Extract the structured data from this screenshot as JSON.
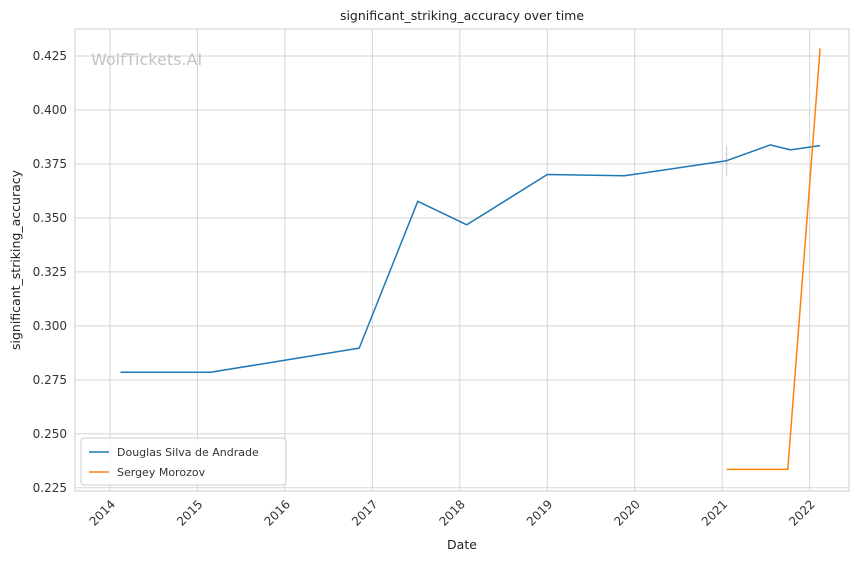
{
  "chart_data": {
    "type": "line",
    "title": "significant_striking_accuracy over time",
    "xlabel": "Date",
    "ylabel": "significant_striking_accuracy",
    "watermark": "WolfTickets.AI",
    "xlim": [
      2013.6,
      2022.45
    ],
    "ylim": [
      0.2235,
      0.4375
    ],
    "x_ticks": [
      2014,
      2015,
      2016,
      2017,
      2018,
      2019,
      2020,
      2021,
      2022
    ],
    "x_tick_labels": [
      "2014",
      "2015",
      "2016",
      "2017",
      "2018",
      "2019",
      "2020",
      "2021",
      "2022"
    ],
    "y_ticks": [
      0.225,
      0.25,
      0.275,
      0.3,
      0.325,
      0.35,
      0.375,
      0.4,
      0.425
    ],
    "y_tick_labels": [
      "0.225",
      "0.250",
      "0.275",
      "0.300",
      "0.325",
      "0.350",
      "0.375",
      "0.400",
      "0.425"
    ],
    "grid": true,
    "legend_position": "lower-left",
    "series": [
      {
        "name": "Douglas Silva de Andrade",
        "color": "#1f77b4",
        "x": [
          2014.12,
          2015.15,
          2016.85,
          2017.52,
          2018.08,
          2019.0,
          2019.88,
          2021.05,
          2021.55,
          2021.78,
          2022.12
        ],
        "y": [
          0.2785,
          0.2785,
          0.2897,
          0.3577,
          0.3468,
          0.3701,
          0.3695,
          0.3765,
          0.3838,
          0.3815,
          0.3835
        ],
        "band": {
          "x": 2021.05,
          "y_low": 0.3695,
          "y_high": 0.3835
        }
      },
      {
        "name": "Sergey Morozov",
        "color": "#ff7f0e",
        "x": [
          2021.05,
          2021.75,
          2022.12
        ],
        "y": [
          0.2335,
          0.2335,
          0.4285
        ]
      }
    ]
  }
}
